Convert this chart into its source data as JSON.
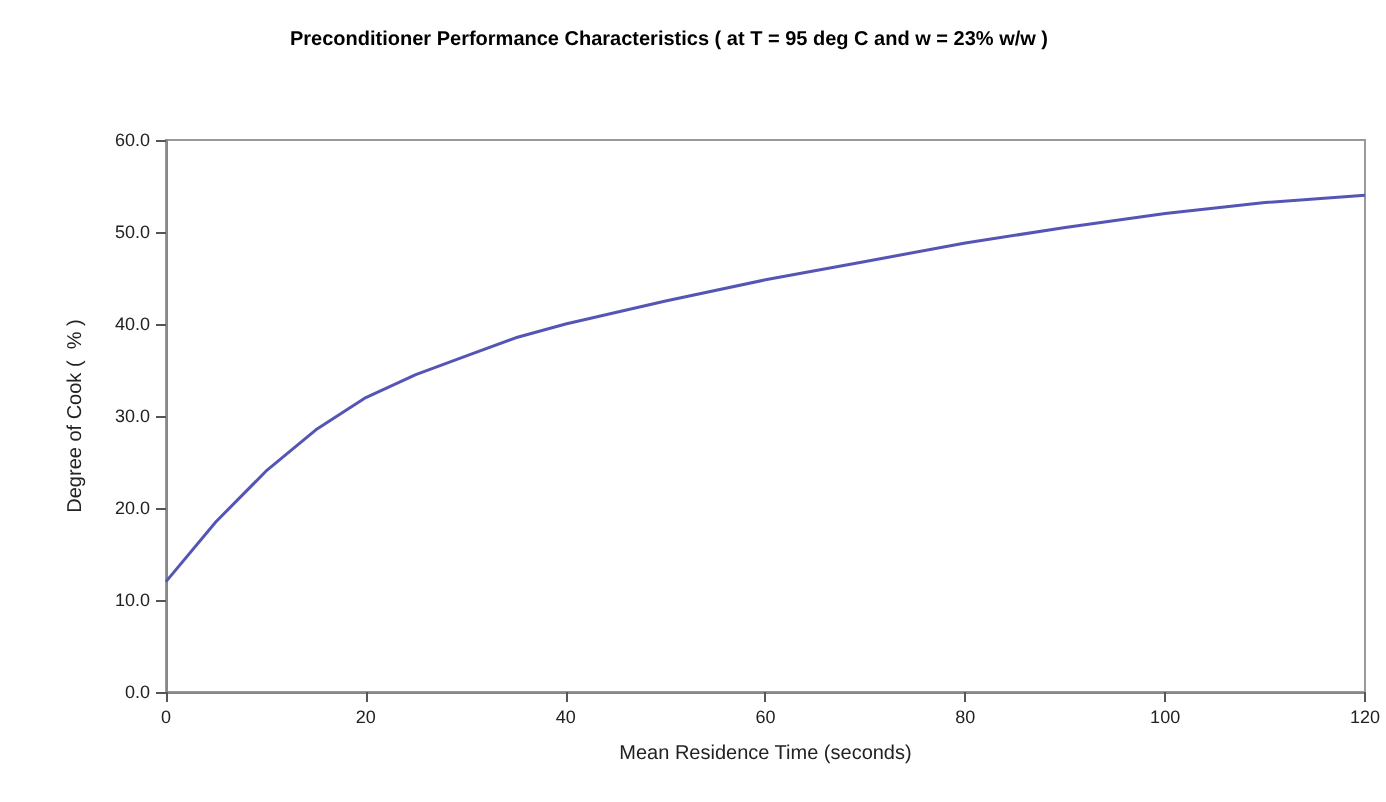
{
  "chart_data": {
    "type": "line",
    "title": "Preconditioner Performance Characteristics ( at T = 95 deg C and w = 23% w/w )",
    "xlabel": "Mean Residence Time (seconds)",
    "ylabel": "Degree of Cook (  % )",
    "x": [
      0,
      5,
      10,
      15,
      20,
      25,
      30,
      35,
      40,
      50,
      60,
      70,
      80,
      90,
      100,
      110,
      120
    ],
    "series": [
      {
        "color": "#5555b5",
        "values": [
          12,
          18.5,
          24,
          28.5,
          32,
          34.5,
          36.5,
          38.5,
          40,
          42.5,
          44.8,
          46.8,
          48.8,
          50.5,
          52,
          53.2,
          54
        ]
      }
    ],
    "xlim": [
      0,
      120
    ],
    "xticks": [
      0,
      20,
      40,
      60,
      80,
      100,
      120
    ],
    "ylim": [
      0,
      60
    ],
    "yticks": [
      {
        "value": 0,
        "label": "0.0"
      },
      {
        "value": 10,
        "label": "10.0"
      },
      {
        "value": 20,
        "label": "20.0"
      },
      {
        "value": 30,
        "label": "30.0"
      },
      {
        "value": 40,
        "label": "40.0"
      },
      {
        "value": 50,
        "label": "50.0"
      },
      {
        "value": 60,
        "label": "60.0"
      }
    ],
    "grid": false,
    "marker": "none",
    "line_style": "solid"
  }
}
